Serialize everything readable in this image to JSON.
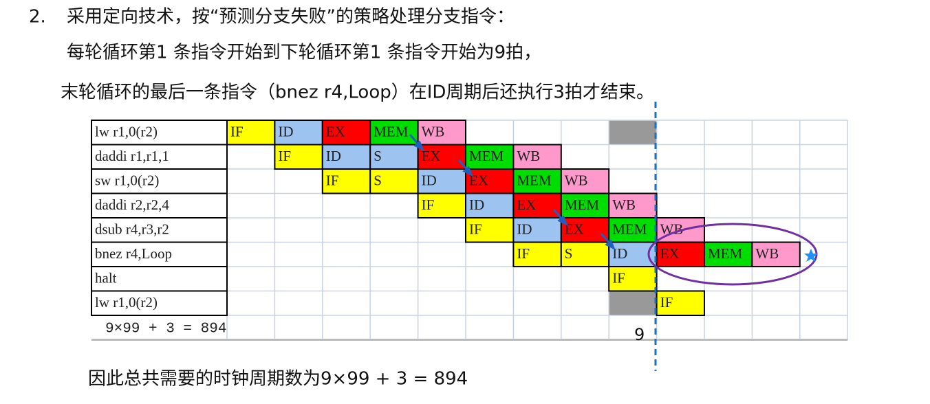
{
  "heading": {
    "number": "2.",
    "text": "采用定向技术，按“预测分支失败”的策略处理分支指令："
  },
  "lines": [
    "每轮循环第1 条指令开始到下轮循环第1 条指令开始为9拍，",
    "末轮循环的最后一条指令（bnez r4,Loop）在ID周期后还执行3拍才结束。"
  ],
  "table": {
    "rows": [
      {
        "instruction": "lw r1,0(r2)",
        "cells": [
          "IF",
          "ID",
          "EX",
          "MEM",
          "WB",
          null,
          null,
          null,
          null,
          null,
          null,
          null,
          null
        ]
      },
      {
        "instruction": "daddi r1,r1,1",
        "cells": [
          null,
          "IF",
          "ID",
          "S",
          "EX",
          "MEM",
          "WB",
          null,
          null,
          null,
          null,
          null,
          null
        ]
      },
      {
        "instruction": "sw r1,0(r2)",
        "cells": [
          null,
          null,
          "IF",
          "S",
          "ID",
          "EX",
          "MEM",
          "WB",
          null,
          null,
          null,
          null,
          null
        ]
      },
      {
        "instruction": "daddi r2,r2,4",
        "cells": [
          null,
          null,
          null,
          null,
          "IF",
          "ID",
          "EX",
          "MEM",
          "WB",
          null,
          null,
          null,
          null
        ]
      },
      {
        "instruction": "dsub r4,r3,r2",
        "cells": [
          null,
          null,
          null,
          null,
          null,
          "IF",
          "ID",
          "EX",
          "MEM",
          "WB",
          null,
          null,
          null
        ]
      },
      {
        "instruction": "bnez r4,Loop",
        "cells": [
          null,
          null,
          null,
          null,
          null,
          null,
          "IF",
          "S",
          "ID",
          "EX",
          "MEM",
          "WB",
          null
        ]
      },
      {
        "instruction": "halt",
        "cells": [
          null,
          null,
          null,
          null,
          null,
          null,
          null,
          null,
          "IF",
          null,
          null,
          null,
          null
        ]
      },
      {
        "instruction": "lw r1,0(r2)",
        "cells": [
          null,
          null,
          null,
          null,
          null,
          null,
          null,
          null,
          null,
          "IF",
          null,
          null,
          null
        ]
      }
    ],
    "footer": "9×99 + 3 = 894",
    "marker": "9"
  },
  "conclusion": "因此总共需要的时钟周期数为9×99 + 3 = 894"
}
